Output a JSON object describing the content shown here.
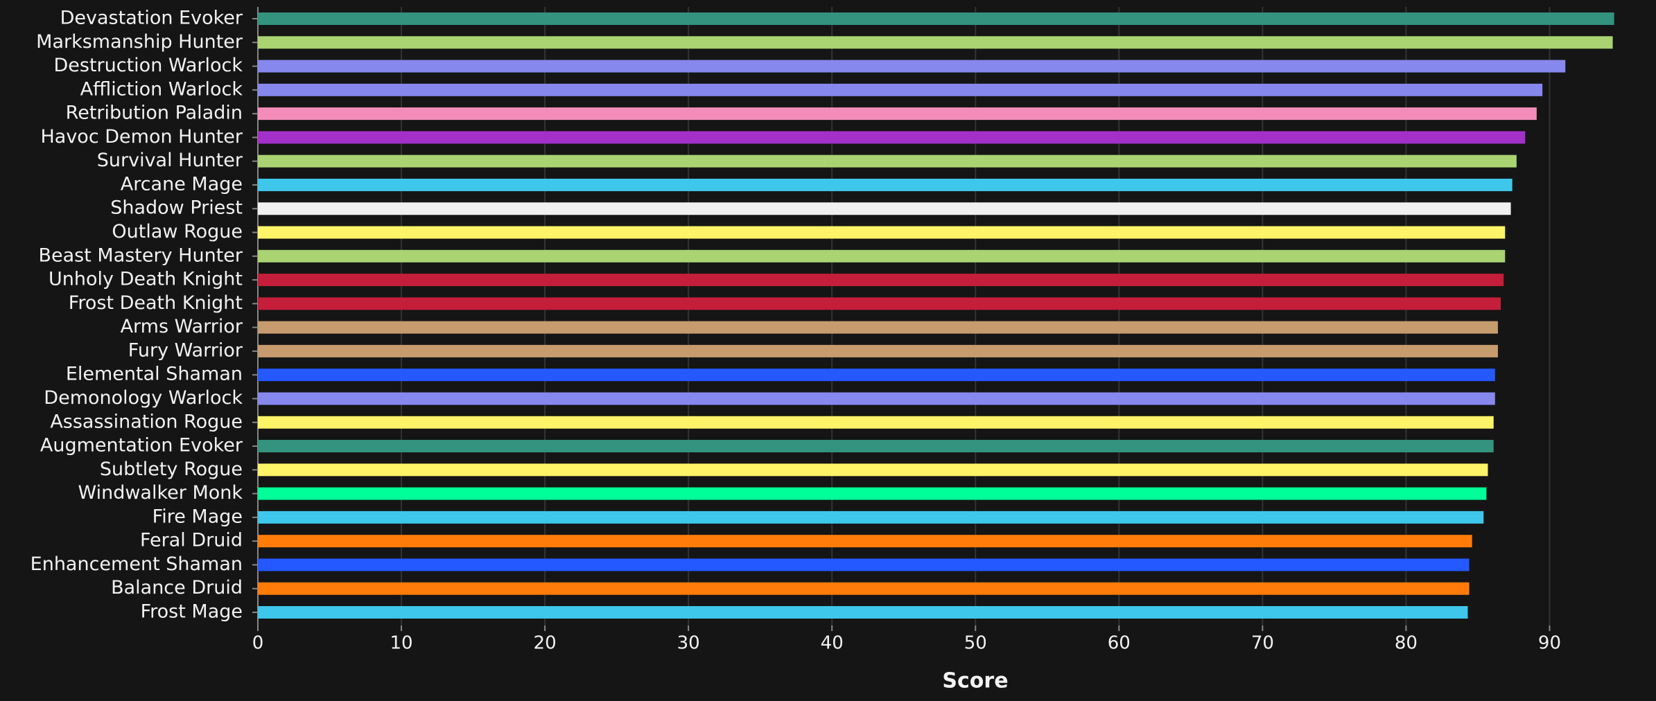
{
  "chart_data": {
    "type": "hbar",
    "x_label": "Score",
    "categories": [
      "Devastation Evoker",
      "Marksmanship Hunter",
      "Destruction Warlock",
      "Affliction Warlock",
      "Retribution Paladin",
      "Havoc Demon Hunter",
      "Survival Hunter",
      "Arcane Mage",
      "Shadow Priest",
      "Outlaw Rogue",
      "Beast Mastery Hunter",
      "Unholy Death Knight",
      "Frost Death Knight",
      "Arms Warrior",
      "Fury Warrior",
      "Elemental Shaman",
      "Demonology Warlock",
      "Assassination Rogue",
      "Augmentation Evoker",
      "Subtlety Rogue",
      "Windwalker Monk",
      "Fire Mage",
      "Feral Druid",
      "Enhancement Shaman",
      "Balance Druid",
      "Frost Mage"
    ],
    "values": [
      94.5,
      94.4,
      91.1,
      89.5,
      89.1,
      88.3,
      87.7,
      87.4,
      87.3,
      86.9,
      86.9,
      86.8,
      86.6,
      86.4,
      86.4,
      86.2,
      86.2,
      86.1,
      86.1,
      85.7,
      85.6,
      85.4,
      84.6,
      84.4,
      84.4,
      84.3
    ],
    "colors": [
      "#33937f",
      "#aad372",
      "#8788ee",
      "#8788ee",
      "#f48cba",
      "#a330c9",
      "#aad372",
      "#3fc7eb",
      "#f0f0f0",
      "#fff468",
      "#aad372",
      "#c41e3a",
      "#c41e3a",
      "#c69b6d",
      "#c69b6d",
      "#2359ff",
      "#8788ee",
      "#fff468",
      "#33937f",
      "#fff468",
      "#00ff98",
      "#3fc7eb",
      "#ff7c0a",
      "#2359ff",
      "#ff7c0a",
      "#3fc7eb"
    ],
    "xlim": [
      0,
      95
    ],
    "xticks": [
      0,
      10,
      20,
      30,
      40,
      50,
      60,
      70,
      80,
      90
    ],
    "grid": true
  }
}
